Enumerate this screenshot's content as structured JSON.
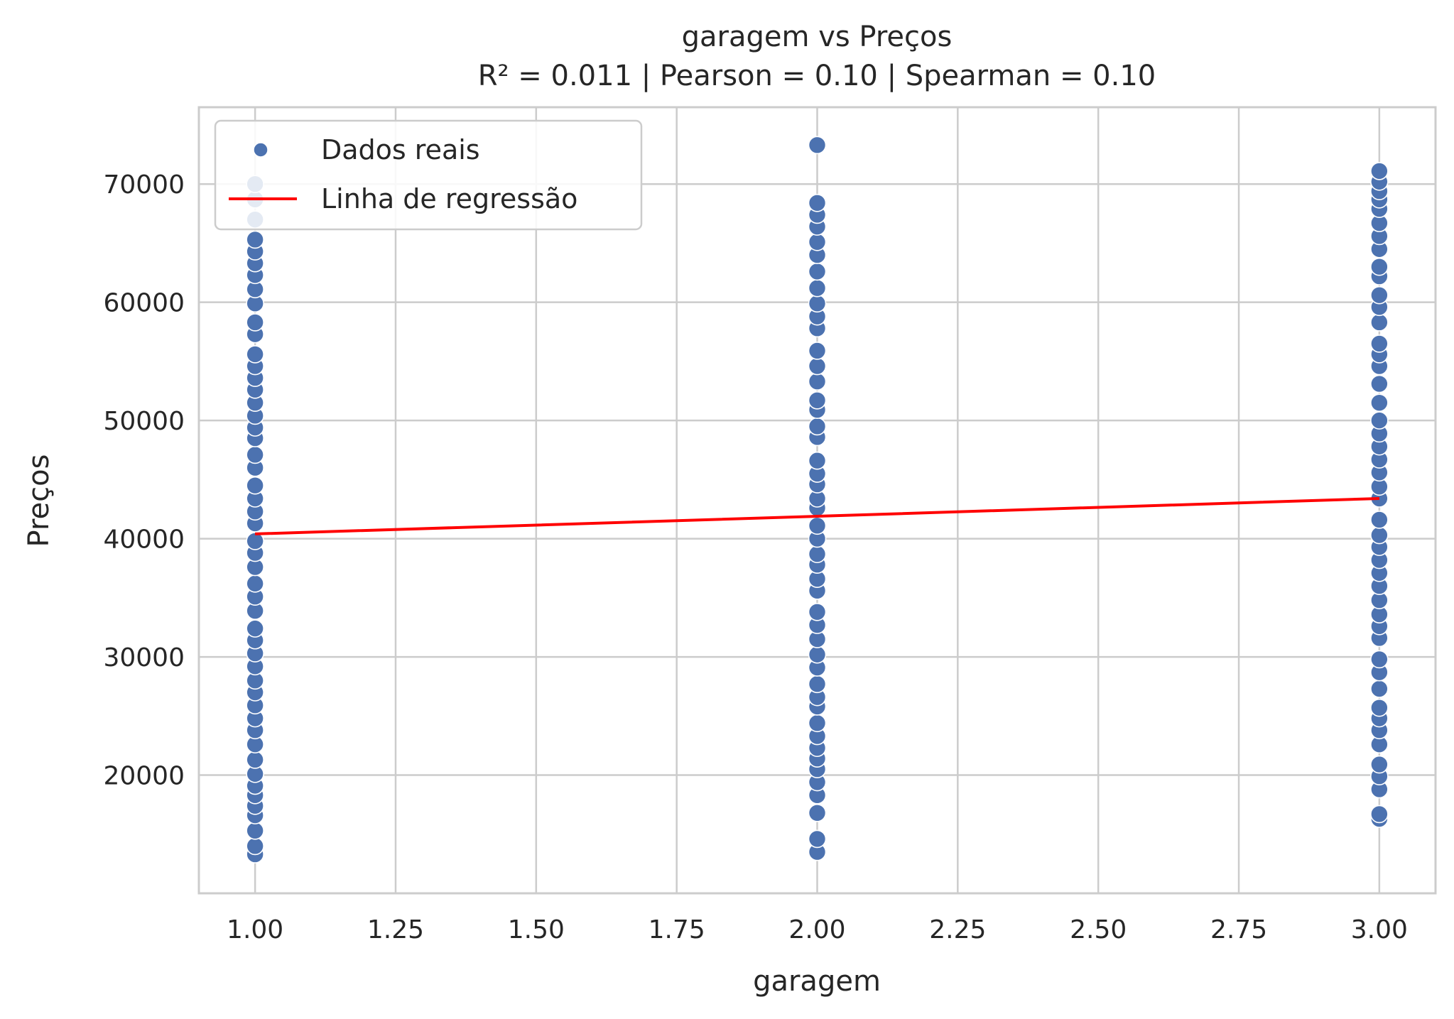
{
  "chart_data": {
    "type": "scatter",
    "title": "garagem vs Preços",
    "subtitle": "R² = 0.011 | Pearson = 0.10 | Spearman = 0.10",
    "xlabel": "garagem",
    "ylabel": "Preços",
    "xlim": [
      0.9,
      3.1
    ],
    "ylim": [
      10000,
      76500
    ],
    "x_ticks": [
      "1.00",
      "1.25",
      "1.50",
      "1.75",
      "2.00",
      "2.25",
      "2.50",
      "2.75",
      "3.00"
    ],
    "x_tick_values": [
      1.0,
      1.25,
      1.5,
      1.75,
      2.0,
      2.25,
      2.5,
      2.75,
      3.0
    ],
    "y_ticks": [
      "20000",
      "30000",
      "40000",
      "50000",
      "60000",
      "70000"
    ],
    "y_tick_values": [
      20000,
      30000,
      40000,
      50000,
      60000,
      70000
    ],
    "grid": true,
    "legend_position": "top-left",
    "point_color": "#4c72b0",
    "line_color": "#ff0000",
    "series": [
      {
        "name": "Dados reais",
        "kind": "scatter",
        "points": [
          [
            1,
            13300
          ],
          [
            1,
            14000
          ],
          [
            1,
            15300
          ],
          [
            1,
            16600
          ],
          [
            1,
            17400
          ],
          [
            1,
            18300
          ],
          [
            1,
            19100
          ],
          [
            1,
            20100
          ],
          [
            1,
            21300
          ],
          [
            1,
            22600
          ],
          [
            1,
            23800
          ],
          [
            1,
            24800
          ],
          [
            1,
            25900
          ],
          [
            1,
            27000
          ],
          [
            1,
            28000
          ],
          [
            1,
            29200
          ],
          [
            1,
            30300
          ],
          [
            1,
            31400
          ],
          [
            1,
            32400
          ],
          [
            1,
            33900
          ],
          [
            1,
            35100
          ],
          [
            1,
            36200
          ],
          [
            1,
            37600
          ],
          [
            1,
            38800
          ],
          [
            1,
            39800
          ],
          [
            1,
            41300
          ],
          [
            1,
            42300
          ],
          [
            1,
            43400
          ],
          [
            1,
            44500
          ],
          [
            1,
            46000
          ],
          [
            1,
            47100
          ],
          [
            1,
            48500
          ],
          [
            1,
            49400
          ],
          [
            1,
            50400
          ],
          [
            1,
            51500
          ],
          [
            1,
            52600
          ],
          [
            1,
            53600
          ],
          [
            1,
            54600
          ],
          [
            1,
            55600
          ],
          [
            1,
            57300
          ],
          [
            1,
            58300
          ],
          [
            1,
            59900
          ],
          [
            1,
            61100
          ],
          [
            1,
            62300
          ],
          [
            1,
            63300
          ],
          [
            1,
            64300
          ],
          [
            1,
            65300
          ],
          [
            1,
            67000
          ],
          [
            1,
            68700
          ],
          [
            1,
            70000
          ],
          [
            2,
            13500
          ],
          [
            2,
            14600
          ],
          [
            2,
            16800
          ],
          [
            2,
            18300
          ],
          [
            2,
            19400
          ],
          [
            2,
            20500
          ],
          [
            2,
            21400
          ],
          [
            2,
            22300
          ],
          [
            2,
            23300
          ],
          [
            2,
            24400
          ],
          [
            2,
            25800
          ],
          [
            2,
            26600
          ],
          [
            2,
            27700
          ],
          [
            2,
            29100
          ],
          [
            2,
            30200
          ],
          [
            2,
            31500
          ],
          [
            2,
            32700
          ],
          [
            2,
            33800
          ],
          [
            2,
            35600
          ],
          [
            2,
            36600
          ],
          [
            2,
            37800
          ],
          [
            2,
            38700
          ],
          [
            2,
            40000
          ],
          [
            2,
            41100
          ],
          [
            2,
            42600
          ],
          [
            2,
            43400
          ],
          [
            2,
            44600
          ],
          [
            2,
            45500
          ],
          [
            2,
            46600
          ],
          [
            2,
            48600
          ],
          [
            2,
            49500
          ],
          [
            2,
            50900
          ],
          [
            2,
            51700
          ],
          [
            2,
            53300
          ],
          [
            2,
            54600
          ],
          [
            2,
            55900
          ],
          [
            2,
            57800
          ],
          [
            2,
            58800
          ],
          [
            2,
            59900
          ],
          [
            2,
            61200
          ],
          [
            2,
            62600
          ],
          [
            2,
            64000
          ],
          [
            2,
            65100
          ],
          [
            2,
            66400
          ],
          [
            2,
            67400
          ],
          [
            2,
            68400
          ],
          [
            2,
            73300
          ],
          [
            3,
            16300
          ],
          [
            3,
            16700
          ],
          [
            3,
            18800
          ],
          [
            3,
            19900
          ],
          [
            3,
            20900
          ],
          [
            3,
            22600
          ],
          [
            3,
            23800
          ],
          [
            3,
            24800
          ],
          [
            3,
            25700
          ],
          [
            3,
            27300
          ],
          [
            3,
            28700
          ],
          [
            3,
            29800
          ],
          [
            3,
            31600
          ],
          [
            3,
            32600
          ],
          [
            3,
            33600
          ],
          [
            3,
            34800
          ],
          [
            3,
            36000
          ],
          [
            3,
            37100
          ],
          [
            3,
            38200
          ],
          [
            3,
            39300
          ],
          [
            3,
            40300
          ],
          [
            3,
            41600
          ],
          [
            3,
            43400
          ],
          [
            3,
            44400
          ],
          [
            3,
            45600
          ],
          [
            3,
            46700
          ],
          [
            3,
            47800
          ],
          [
            3,
            48900
          ],
          [
            3,
            50000
          ],
          [
            3,
            51500
          ],
          [
            3,
            53100
          ],
          [
            3,
            54600
          ],
          [
            3,
            55600
          ],
          [
            3,
            56500
          ],
          [
            3,
            58300
          ],
          [
            3,
            59600
          ],
          [
            3,
            60600
          ],
          [
            3,
            62200
          ],
          [
            3,
            63000
          ],
          [
            3,
            64500
          ],
          [
            3,
            65600
          ],
          [
            3,
            66700
          ],
          [
            3,
            67900
          ],
          [
            3,
            68700
          ],
          [
            3,
            69400
          ],
          [
            3,
            70200
          ],
          [
            3,
            71100
          ]
        ]
      },
      {
        "name": "Linha de regressão",
        "kind": "line",
        "points": [
          [
            1,
            40400
          ],
          [
            2,
            41900
          ],
          [
            3,
            43400
          ]
        ]
      }
    ]
  }
}
